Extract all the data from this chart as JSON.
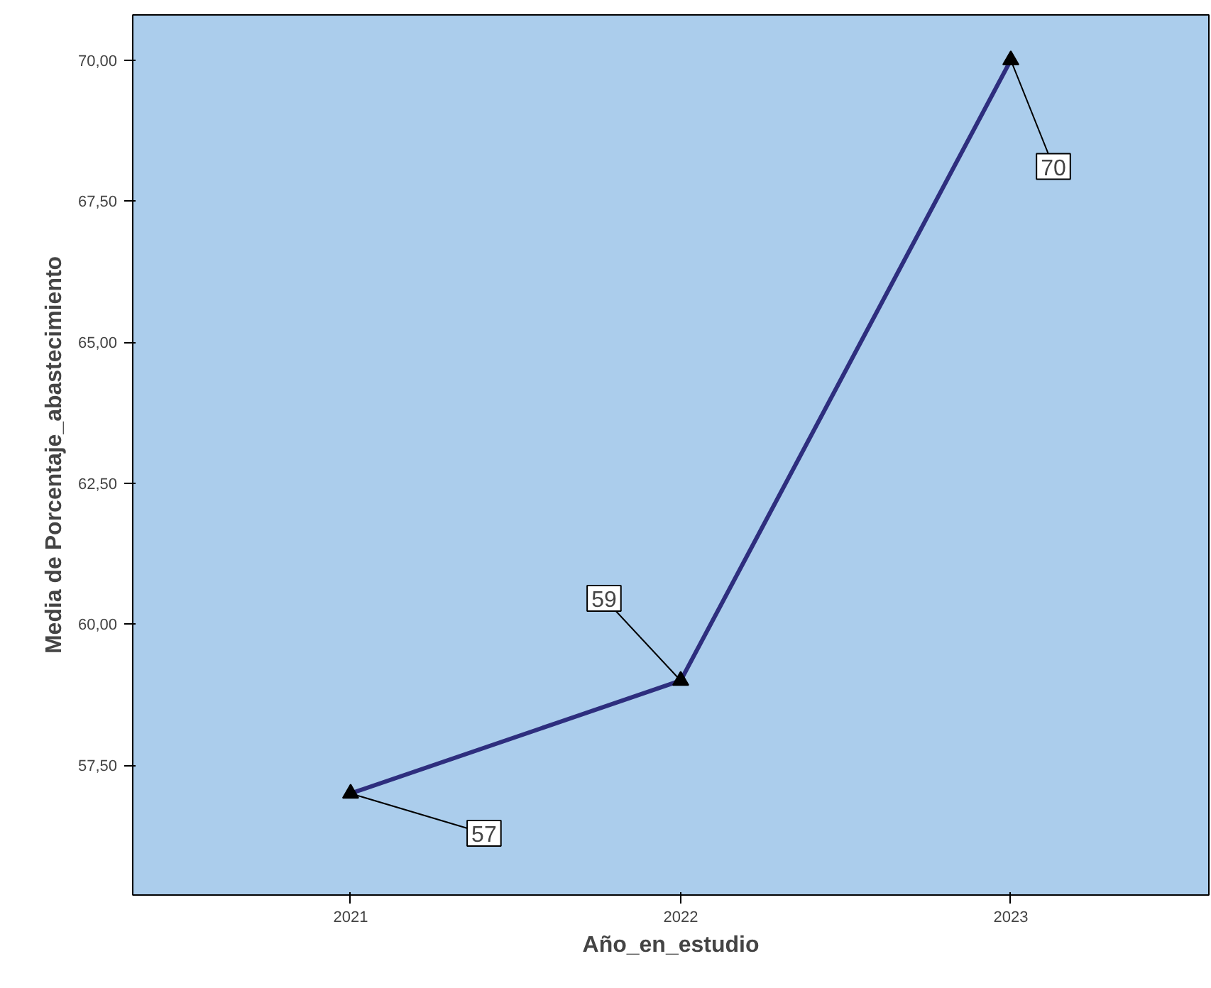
{
  "chart_data": {
    "type": "line",
    "xlabel": "Año_en_estudio",
    "ylabel": "Media de Porcentaje_abastecimiento",
    "categories": [
      "2021",
      "2022",
      "2023"
    ],
    "series": [
      {
        "color": "#2e2e7e",
        "values": [
          57,
          59,
          70
        ]
      }
    ],
    "ylim": [
      55.2,
      70.8
    ],
    "yticks": [
      {
        "value": 57.5,
        "label": "57,50"
      },
      {
        "value": 60,
        "label": "60,00"
      },
      {
        "value": 62.5,
        "label": "62,50"
      },
      {
        "value": 65,
        "label": "65,00"
      },
      {
        "value": 67.5,
        "label": "67,50"
      },
      {
        "value": 70,
        "label": "70,00"
      }
    ],
    "marker": "triangle",
    "grid": false,
    "annotations": [
      {
        "text": "57",
        "x": "2021",
        "y": 57
      },
      {
        "text": "59",
        "x": "2022",
        "y": 59
      },
      {
        "text": "70",
        "x": "2023",
        "y": 70
      }
    ]
  }
}
